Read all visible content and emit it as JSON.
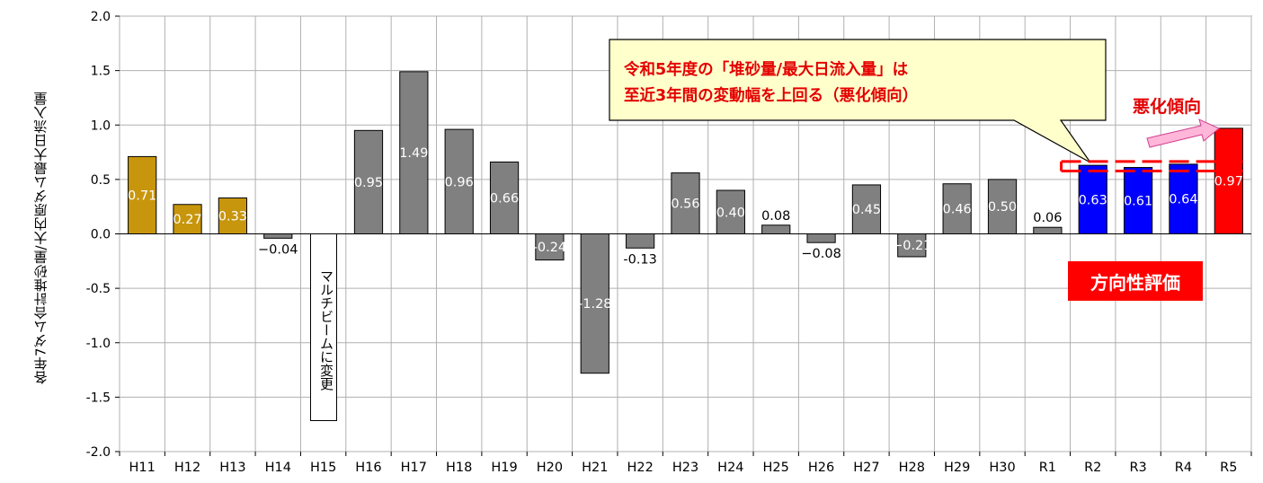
{
  "chart_data": {
    "type": "bar",
    "ylabel": "各年7ダム合計堆砂量/大内原ダム最大日流入量",
    "ylim": [
      -2.0,
      2.0
    ],
    "yticks": [
      "2.0",
      "1.5",
      "1.0",
      "0.5",
      "0.0",
      "-0.5",
      "-1.0",
      "-1.5",
      "-2.0"
    ],
    "grid": true,
    "categories": [
      "H11",
      "H12",
      "H13",
      "H14",
      "H15",
      "H16",
      "H17",
      "H18",
      "H19",
      "H20",
      "H21",
      "H22",
      "H23",
      "H24",
      "H25",
      "H26",
      "H27",
      "H28",
      "H29",
      "H30",
      "R1",
      "R2",
      "R3",
      "R4",
      "R5"
    ],
    "values": [
      0.71,
      0.27,
      0.33,
      -0.04,
      null,
      0.95,
      1.49,
      0.96,
      0.66,
      -0.24,
      -1.28,
      -0.13,
      0.56,
      0.4,
      0.08,
      -0.08,
      0.45,
      -0.21,
      0.46,
      0.5,
      0.06,
      0.63,
      0.61,
      0.64,
      0.97
    ],
    "data_labels": [
      "0.71",
      "0.27",
      "0.33",
      "−0.04",
      "",
      "0.95",
      "1.49",
      "0.96",
      "0.66",
      "-0.24",
      "-1.28",
      "-0.13",
      "0.56",
      "0.40",
      "0.08",
      "−0.08",
      "0.45",
      "−0.21",
      "0.46",
      "0.50",
      "0.06",
      "0.63",
      "0.61",
      "0.64",
      "0.97"
    ],
    "colors": {
      "early": "#c8960c",
      "mid": "#808080",
      "recent": "#0000ff",
      "latest": "#ff0000"
    },
    "color_groups": [
      "early",
      "early",
      "early",
      "mid",
      "mid",
      "mid",
      "mid",
      "mid",
      "mid",
      "mid",
      "mid",
      "mid",
      "mid",
      "mid",
      "mid",
      "mid",
      "mid",
      "mid",
      "mid",
      "mid",
      "mid",
      "recent",
      "recent",
      "recent",
      "latest"
    ]
  },
  "annotations": {
    "multibeam_note": "マルチビームに変更",
    "callout_line1": "令和5年度の「堆砂量/最大日流入量」は",
    "callout_line2": "至近3年間の変動幅を上回る（悪化傾向）",
    "worse_trend": "悪化傾向",
    "direction_eval": "方向性評価"
  }
}
